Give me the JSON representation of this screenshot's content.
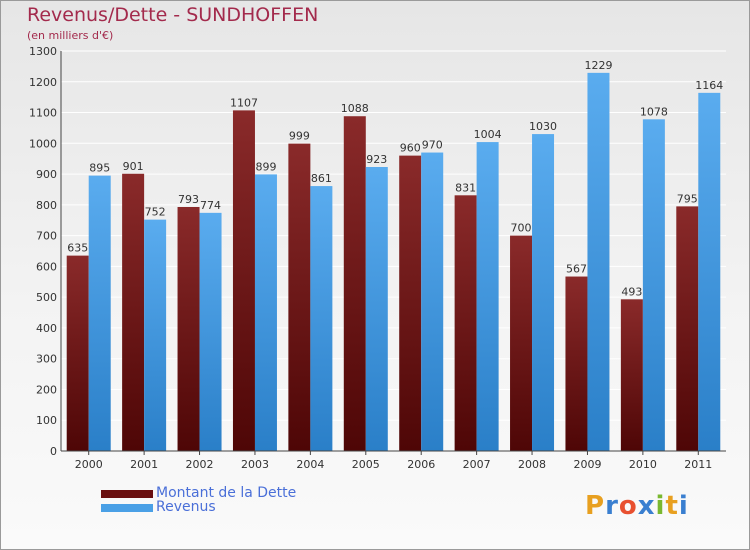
{
  "title": "Revenus/Dette - SUNDHOFFEN",
  "subtitle": "(en milliers d'€)",
  "colors": {
    "dette": "#7a1e1e",
    "revenus": "#4aa0e6",
    "title": "#a32a4c",
    "legend_text": "#4a6fd8"
  },
  "legend": {
    "dette_label": "Montant de la Dette",
    "revenus_label": "Revenus"
  },
  "logo": {
    "letters": [
      "P",
      "r",
      "o",
      "x",
      "i",
      "t",
      "i"
    ],
    "colors": [
      "#e8a020",
      "#3a7fd0",
      "#e85030",
      "#3a7fd0",
      "#7ab830",
      "#e8a020",
      "#3a7fd0"
    ]
  },
  "chart_data": {
    "type": "bar",
    "title": "Revenus/Dette - SUNDHOFFEN",
    "subtitle": "(en milliers d'€)",
    "categories": [
      "2000",
      "2001",
      "2002",
      "2003",
      "2004",
      "2005",
      "2006",
      "2007",
      "2008",
      "2009",
      "2010",
      "2011"
    ],
    "series": [
      {
        "name": "Montant de la Dette",
        "values": [
          635,
          901,
          793,
          1107,
          999,
          1088,
          960,
          831,
          700,
          567,
          493,
          795
        ]
      },
      {
        "name": "Revenus",
        "values": [
          895,
          752,
          774,
          899,
          861,
          923,
          970,
          1004,
          1030,
          1229,
          1078,
          1164
        ]
      }
    ],
    "ylim": [
      0,
      1300
    ],
    "yticks": [
      0,
      100,
      200,
      300,
      400,
      500,
      600,
      700,
      800,
      900,
      1000,
      1100,
      1200,
      1300
    ],
    "grid": true,
    "legend_position": "bottom-left"
  }
}
